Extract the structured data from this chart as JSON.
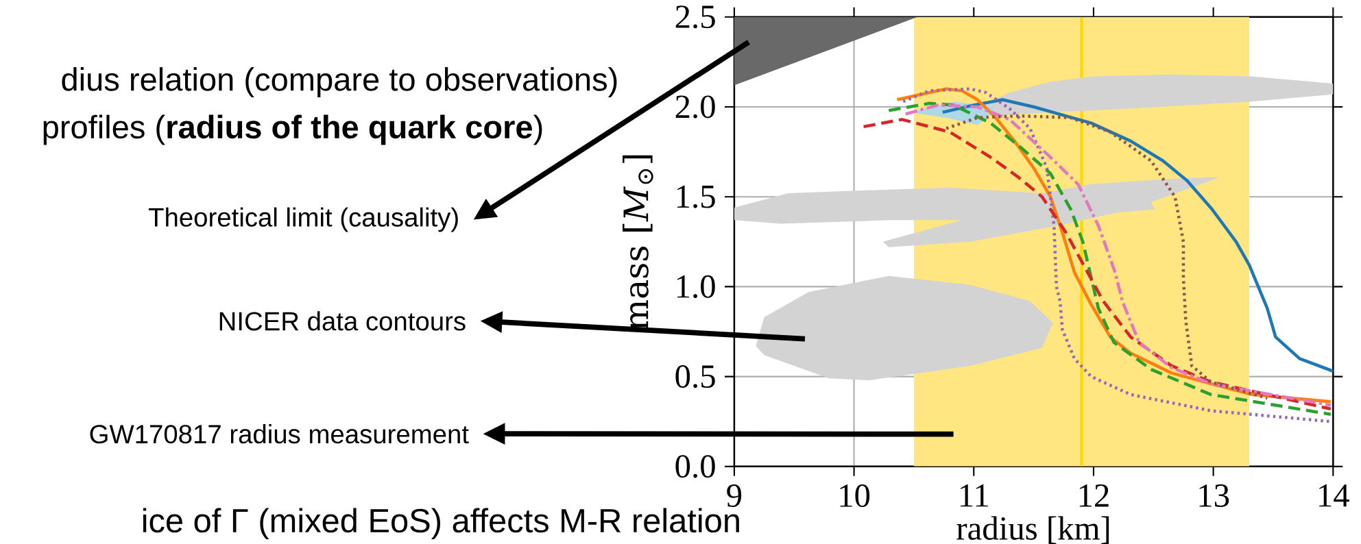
{
  "chart_data": {
    "type": "line",
    "xlabel": "radius [km]",
    "ylabel": "mass [*M*$_{⊙}$]",
    "xlim": [
      9,
      14
    ],
    "ylim": [
      0,
      2.5
    ],
    "xticks": [
      9,
      10,
      11,
      12,
      13,
      14
    ],
    "yticks": [
      {
        "value": 0,
        "label": "0.0"
      },
      {
        "value": 0.5,
        "label": "0.5"
      },
      {
        "value": 1,
        "label": "1.0"
      },
      {
        "value": 1.5,
        "label": "1.5"
      },
      {
        "value": 2,
        "label": "2.0"
      },
      {
        "value": 2.5,
        "label": "2.5"
      }
    ],
    "grid": true,
    "bands": [
      {
        "axis": "x",
        "from": 10.5,
        "to": 13.3,
        "color": "#ffe680"
      }
    ],
    "ref_lines": [
      {
        "axis": "x",
        "value": 11.9,
        "color": "#ffd700"
      }
    ],
    "series": [
      {
        "type": "area",
        "color": "#696969",
        "x": [
          9,
          9,
          10.53
        ],
        "values": [
          2.12,
          2.5,
          2.5
        ]
      },
      {
        "type": "area",
        "color": "#d3d3d3",
        "x": [
          11.03,
          11.3,
          11.64,
          12.0,
          12.65,
          13.32,
          14,
          14,
          13.32,
          12.31,
          11.64,
          11.14
        ],
        "values": [
          2.0,
          2.08,
          2.14,
          2.17,
          2.18,
          2.17,
          2.13,
          2.07,
          2.03,
          1.99,
          1.97,
          1.95
        ]
      },
      {
        "type": "area",
        "color": "#d3d3d3",
        "x": [
          9,
          9.45,
          10.29,
          10.8,
          11.57,
          11.98,
          12.65,
          13.05,
          12.98,
          12.48,
          12.51,
          12.18,
          11.71,
          10.97,
          10.29,
          10.24,
          10.9,
          10.29,
          9.39,
          9
        ],
        "values": [
          1.44,
          1.52,
          1.54,
          1.55,
          1.52,
          1.57,
          1.6,
          1.61,
          1.59,
          1.47,
          1.43,
          1.41,
          1.34,
          1.25,
          1.22,
          1.25,
          1.37,
          1.37,
          1.35,
          1.37
        ]
      },
      {
        "type": "area",
        "color": "#d3d3d3",
        "x": [
          9.18,
          9.25,
          9.62,
          10.29,
          10.97,
          11.47,
          11.66,
          11.57,
          10.97,
          10.13,
          9.79,
          9.25
        ],
        "values": [
          0.67,
          0.83,
          0.97,
          1.06,
          1.01,
          0.92,
          0.8,
          0.66,
          0.56,
          0.48,
          0.49,
          0.62
        ]
      },
      {
        "type": "area",
        "color": "#add8e6",
        "x": [
          10.46,
          10.83,
          11.17,
          11.1,
          11.03,
          10.77
        ],
        "values": [
          1.97,
          2.03,
          2.0,
          1.93,
          1.9,
          1.94
        ]
      },
      {
        "color": "#1f77b4",
        "line_style": "solid",
        "x": [
          10.74,
          11.0,
          11.24,
          11.5,
          11.98,
          12.31,
          12.58,
          12.78,
          12.99,
          13.19,
          13.3,
          13.45,
          13.52,
          13.72,
          14.0
        ],
        "values": [
          1.97,
          2.01,
          2.04,
          2.0,
          1.91,
          1.81,
          1.7,
          1.59,
          1.43,
          1.25,
          1.12,
          0.88,
          0.72,
          0.6,
          0.53
        ]
      },
      {
        "color": "#ff7f0e",
        "line_style": "solid",
        "x": [
          10.36,
          10.77,
          10.9,
          11.03,
          11.17,
          11.34,
          11.5,
          11.64,
          11.74,
          11.84,
          11.98,
          12.14,
          12.31,
          12.65,
          12.98,
          13.32,
          13.98
        ],
        "values": [
          2.04,
          2.1,
          2.09,
          2.04,
          1.95,
          1.81,
          1.66,
          1.5,
          1.3,
          1.08,
          0.9,
          0.72,
          0.63,
          0.52,
          0.46,
          0.4,
          0.36
        ]
      },
      {
        "color": "#9467bd",
        "line_style": "dotted",
        "x": [
          10.41,
          10.63,
          10.97,
          11.1,
          11.3,
          11.47,
          11.61,
          11.67,
          11.69,
          11.72,
          11.74,
          11.84,
          11.98,
          12.31,
          12.98,
          13.98
        ],
        "values": [
          2.03,
          2.09,
          2.1,
          2.08,
          1.99,
          1.88,
          1.66,
          1.34,
          1.0,
          0.92,
          0.76,
          0.6,
          0.5,
          0.4,
          0.31,
          0.25
        ]
      },
      {
        "color": "#2ca02c",
        "line_style": "dashed",
        "x": [
          10.29,
          10.63,
          10.83,
          11.14,
          11.4,
          11.64,
          11.81,
          11.91,
          11.97,
          12.04,
          12.17,
          12.48,
          12.98,
          13.98
        ],
        "values": [
          1.98,
          2.02,
          2.01,
          1.91,
          1.77,
          1.63,
          1.43,
          1.25,
          1.08,
          0.88,
          0.69,
          0.54,
          0.4,
          0.29
        ]
      },
      {
        "color": "#d62728",
        "line_style": "dashed",
        "x": [
          10.08,
          10.4,
          10.8,
          11.14,
          11.37,
          11.57,
          11.77,
          11.95,
          12.08,
          12.31,
          12.65,
          12.98,
          13.98
        ],
        "values": [
          1.89,
          1.93,
          1.86,
          1.72,
          1.61,
          1.5,
          1.3,
          1.08,
          0.92,
          0.72,
          0.56,
          0.47,
          0.32
        ]
      },
      {
        "color": "#e377c2",
        "line_style": "dashdot",
        "x": [
          10.43,
          10.7,
          11.03,
          11.3,
          11.64,
          11.87,
          12.04,
          12.18,
          12.24,
          12.38,
          12.65,
          12.98,
          13.98
        ],
        "values": [
          1.96,
          2.01,
          2.0,
          1.93,
          1.72,
          1.57,
          1.34,
          1.08,
          0.92,
          0.69,
          0.55,
          0.46,
          0.34
        ]
      },
      {
        "color": "#8c564b",
        "line_style": "dotted",
        "x": [
          10.77,
          11.03,
          11.37,
          11.81,
          12.14,
          12.48,
          12.68,
          12.75,
          12.75,
          12.77,
          12.82,
          12.98,
          13.45
        ],
        "values": [
          1.88,
          1.94,
          1.95,
          1.94,
          1.86,
          1.7,
          1.5,
          1.25,
          1.05,
          0.81,
          0.56,
          0.47,
          0.38
        ]
      }
    ],
    "annotations": [
      "dius relation (compare to observations)",
      "profiles (**radius of the quark core**)",
      "Theoretical limit (causality)",
      "NICER data contours",
      "GW170817 radius measurement",
      "ice of Γ (mixed EoS) affects M-R relation"
    ]
  }
}
